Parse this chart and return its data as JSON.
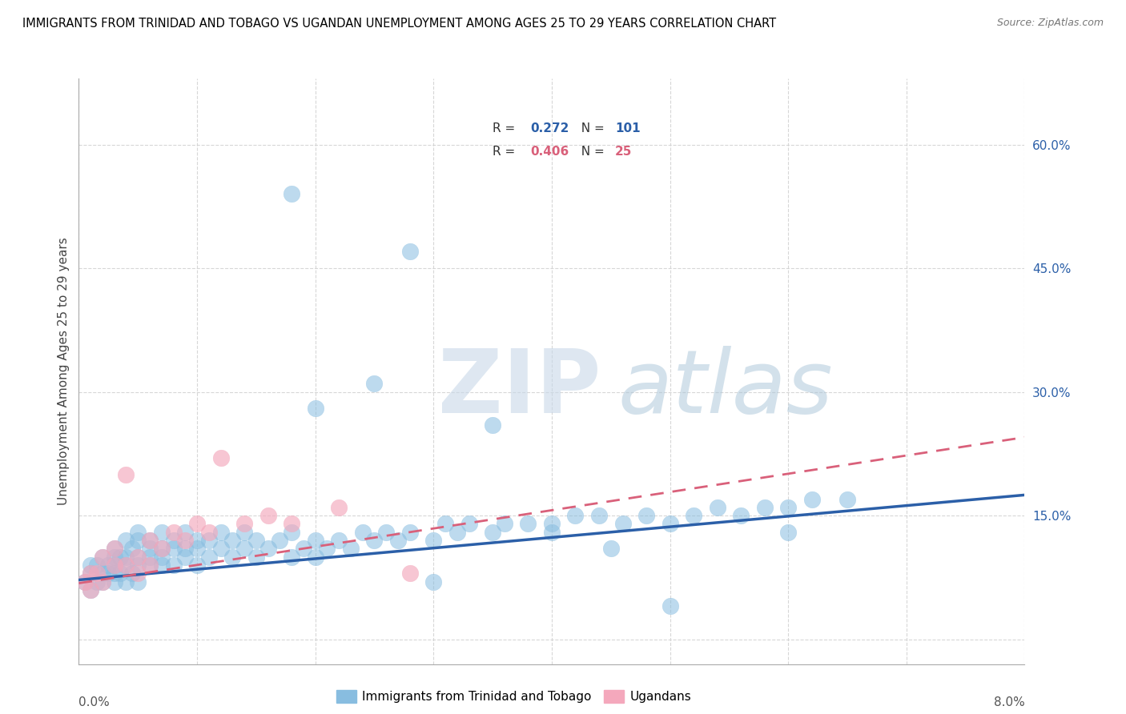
{
  "title": "IMMIGRANTS FROM TRINIDAD AND TOBAGO VS UGANDAN UNEMPLOYMENT AMONG AGES 25 TO 29 YEARS CORRELATION CHART",
  "source": "Source: ZipAtlas.com",
  "ylabel": "Unemployment Among Ages 25 to 29 years",
  "ytick_values": [
    0.0,
    0.15,
    0.3,
    0.45,
    0.6
  ],
  "ytick_labels": [
    "",
    "15.0%",
    "30.0%",
    "45.0%",
    "60.0%"
  ],
  "xlim": [
    0.0,
    0.08
  ],
  "ylim": [
    -0.03,
    0.68
  ],
  "legend_label1": "Immigrants from Trinidad and Tobago",
  "legend_label2": "Ugandans",
  "blue_color": "#88bde0",
  "pink_color": "#f4a8bc",
  "blue_line_color": "#2b5fa8",
  "pink_line_color": "#d9607a",
  "r1": 0.272,
  "r2": 0.406,
  "watermark_zip": "ZIP",
  "watermark_atlas": "atlas",
  "blue_scatter_x": [
    0.0005,
    0.001,
    0.001,
    0.001,
    0.0015,
    0.0015,
    0.002,
    0.002,
    0.002,
    0.0025,
    0.0025,
    0.003,
    0.003,
    0.003,
    0.003,
    0.003,
    0.0035,
    0.0035,
    0.004,
    0.004,
    0.004,
    0.004,
    0.0045,
    0.0045,
    0.005,
    0.005,
    0.005,
    0.005,
    0.005,
    0.006,
    0.006,
    0.006,
    0.006,
    0.007,
    0.007,
    0.007,
    0.007,
    0.008,
    0.008,
    0.008,
    0.009,
    0.009,
    0.009,
    0.01,
    0.01,
    0.01,
    0.011,
    0.011,
    0.012,
    0.012,
    0.013,
    0.013,
    0.014,
    0.014,
    0.015,
    0.015,
    0.016,
    0.017,
    0.018,
    0.018,
    0.019,
    0.02,
    0.02,
    0.021,
    0.022,
    0.023,
    0.024,
    0.025,
    0.026,
    0.027,
    0.028,
    0.03,
    0.031,
    0.032,
    0.033,
    0.035,
    0.036,
    0.038,
    0.04,
    0.042,
    0.044,
    0.046,
    0.048,
    0.05,
    0.052,
    0.054,
    0.056,
    0.058,
    0.06,
    0.062,
    0.02,
    0.025,
    0.03,
    0.028,
    0.018,
    0.035,
    0.04,
    0.045,
    0.05,
    0.06,
    0.065
  ],
  "blue_scatter_y": [
    0.07,
    0.06,
    0.08,
    0.09,
    0.07,
    0.09,
    0.07,
    0.08,
    0.1,
    0.08,
    0.09,
    0.07,
    0.08,
    0.09,
    0.1,
    0.11,
    0.08,
    0.1,
    0.07,
    0.09,
    0.1,
    0.12,
    0.08,
    0.11,
    0.07,
    0.09,
    0.1,
    0.12,
    0.13,
    0.09,
    0.1,
    0.11,
    0.12,
    0.09,
    0.1,
    0.11,
    0.13,
    0.09,
    0.11,
    0.12,
    0.1,
    0.11,
    0.13,
    0.09,
    0.11,
    0.12,
    0.1,
    0.12,
    0.11,
    0.13,
    0.1,
    0.12,
    0.11,
    0.13,
    0.1,
    0.12,
    0.11,
    0.12,
    0.1,
    0.13,
    0.11,
    0.1,
    0.12,
    0.11,
    0.12,
    0.11,
    0.13,
    0.12,
    0.13,
    0.12,
    0.13,
    0.12,
    0.14,
    0.13,
    0.14,
    0.13,
    0.14,
    0.14,
    0.14,
    0.15,
    0.15,
    0.14,
    0.15,
    0.14,
    0.15,
    0.16,
    0.15,
    0.16,
    0.16,
    0.17,
    0.28,
    0.31,
    0.07,
    0.47,
    0.54,
    0.26,
    0.13,
    0.11,
    0.04,
    0.13,
    0.17
  ],
  "pink_scatter_x": [
    0.0005,
    0.001,
    0.001,
    0.0015,
    0.002,
    0.002,
    0.003,
    0.003,
    0.004,
    0.004,
    0.005,
    0.005,
    0.006,
    0.006,
    0.007,
    0.008,
    0.009,
    0.01,
    0.011,
    0.012,
    0.014,
    0.016,
    0.018,
    0.022,
    0.028
  ],
  "pink_scatter_y": [
    0.07,
    0.06,
    0.08,
    0.08,
    0.07,
    0.1,
    0.09,
    0.11,
    0.2,
    0.09,
    0.08,
    0.1,
    0.09,
    0.12,
    0.11,
    0.13,
    0.12,
    0.14,
    0.13,
    0.22,
    0.14,
    0.15,
    0.14,
    0.16,
    0.08
  ],
  "blue_trend_x0": 0.0,
  "blue_trend_y0": 0.072,
  "blue_trend_x1": 0.08,
  "blue_trend_y1": 0.175,
  "pink_trend_x0": 0.0,
  "pink_trend_y0": 0.068,
  "pink_trend_x1": 0.08,
  "pink_trend_y1": 0.245
}
